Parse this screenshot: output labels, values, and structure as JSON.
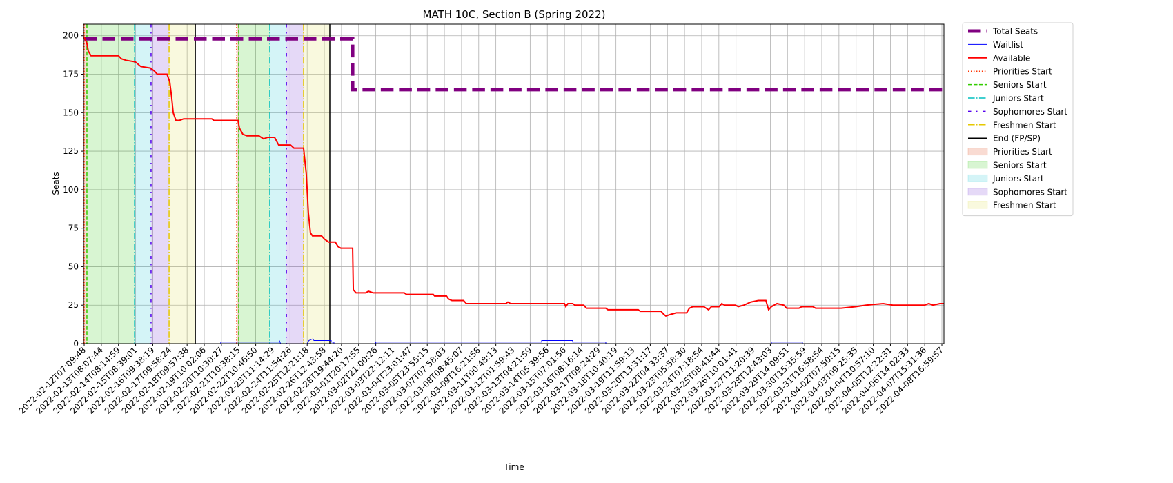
{
  "chart_data": {
    "type": "line",
    "title": "MATH 10C, Section B (Spring 2022)",
    "xlabel": "Time",
    "ylabel": "Seats",
    "grid": true,
    "legend": "outside upper right",
    "xlim": [
      -0.04,
      50.12
    ],
    "ylim": [
      0,
      207.5
    ],
    "yticks": [
      0,
      25,
      50,
      75,
      100,
      125,
      150,
      175,
      200
    ],
    "xticks": [
      {
        "value": 0,
        "label": "2022-02-12T07:09:48"
      },
      {
        "value": 1,
        "label": "2022-02-13T08:07:44"
      },
      {
        "value": 2,
        "label": "2022-02-14T08:14:59"
      },
      {
        "value": 3,
        "label": "2022-02-15T08:39:01"
      },
      {
        "value": 4,
        "label": "2022-02-16T09:38:19"
      },
      {
        "value": 5,
        "label": "2022-02-17T09:58:24"
      },
      {
        "value": 6,
        "label": "2022-02-18T09:57:38"
      },
      {
        "value": 7,
        "label": "2022-02-19T10:02:06"
      },
      {
        "value": 8,
        "label": "2022-02-20T10:30:27"
      },
      {
        "value": 9,
        "label": "2022-02-21T10:38:15"
      },
      {
        "value": 10,
        "label": "2022-02-22T10:46:50"
      },
      {
        "value": 11,
        "label": "2022-02-23T11:14:29"
      },
      {
        "value": 12,
        "label": "2022-02-24T11:54:26"
      },
      {
        "value": 13,
        "label": "2022-02-25T12:21:18"
      },
      {
        "value": 14,
        "label": "2022-02-26T12:43:58"
      },
      {
        "value": 15,
        "label": "2022-02-28T19:44:20"
      },
      {
        "value": 16,
        "label": "2022-03-01T20:17:55"
      },
      {
        "value": 17,
        "label": "2022-03-02T21:00:26"
      },
      {
        "value": 18,
        "label": "2022-03-03T22:12:11"
      },
      {
        "value": 19,
        "label": "2022-03-04T23:01:47"
      },
      {
        "value": 20,
        "label": "2022-03-05T23:55:15"
      },
      {
        "value": 21,
        "label": "2022-03-07T07:58:03"
      },
      {
        "value": 22,
        "label": "2022-03-08T08:45:07"
      },
      {
        "value": 23,
        "label": "2022-03-09T16:21:58"
      },
      {
        "value": 24,
        "label": "2022-03-11T00:48:13"
      },
      {
        "value": 25,
        "label": "2022-03-12T01:59:43"
      },
      {
        "value": 26,
        "label": "2022-03-13T04:21:59"
      },
      {
        "value": 27,
        "label": "2022-03-14T05:39:56"
      },
      {
        "value": 28,
        "label": "2022-03-15T07:01:56"
      },
      {
        "value": 29,
        "label": "2022-03-16T08:16:14"
      },
      {
        "value": 30,
        "label": "2022-03-17T09:24:29"
      },
      {
        "value": 31,
        "label": "2022-03-18T10:40:19"
      },
      {
        "value": 32,
        "label": "2022-03-19T11:59:13"
      },
      {
        "value": 33,
        "label": "2022-03-20T13:31:17"
      },
      {
        "value": 34,
        "label": "2022-03-22T04:33:37"
      },
      {
        "value": 35,
        "label": "2022-03-23T05:58:30"
      },
      {
        "value": 36,
        "label": "2022-03-24T07:18:54"
      },
      {
        "value": 37,
        "label": "2022-03-25T08:41:44"
      },
      {
        "value": 38,
        "label": "2022-03-26T10:01:41"
      },
      {
        "value": 39,
        "label": "2022-03-27T11:20:39"
      },
      {
        "value": 40,
        "label": "2022-03-28T12:43:03"
      },
      {
        "value": 41,
        "label": "2022-03-29T14:09:51"
      },
      {
        "value": 42,
        "label": "2022-03-30T15:35:59"
      },
      {
        "value": 43,
        "label": "2022-03-31T16:58:54"
      },
      {
        "value": 44,
        "label": "2022-04-02T07:50:15"
      },
      {
        "value": 45,
        "label": "2022-04-03T09:25:35"
      },
      {
        "value": 46,
        "label": "2022-04-04T10:57:10"
      },
      {
        "value": 47,
        "label": "2022-04-05T12:22:31"
      },
      {
        "value": 48,
        "label": "2022-04-06T14:02:33"
      },
      {
        "value": 49,
        "label": "2022-04-07T15:31:36"
      },
      {
        "value": 50,
        "label": "2022-04-08T16:59:57"
      }
    ],
    "series": [
      {
        "name": "Total Seats",
        "color": "#800080",
        "style": "dashed",
        "width": 5,
        "x": [
          0,
          15.65,
          15.65,
          50.12
        ],
        "values": [
          198,
          198,
          165,
          165
        ]
      },
      {
        "name": "Waitlist",
        "color": "#0000ff",
        "style": "solid",
        "width": 1,
        "x": [
          0,
          7.96,
          7.96,
          11.38,
          11.38,
          11.45,
          13.0,
          13.1,
          13.3,
          13.4,
          14.4,
          14.4,
          14.56,
          14.56,
          17.0,
          17.0,
          26.67,
          26.67,
          28.48,
          28.48,
          30.41,
          30.41,
          40.06,
          40.06,
          41.87,
          41.87,
          50.12
        ],
        "values": [
          0,
          0,
          1,
          1,
          2,
          0,
          0,
          2,
          3,
          2,
          2,
          1,
          1,
          0,
          0,
          1,
          1,
          2,
          2,
          1,
          1,
          0,
          0,
          1,
          1,
          0,
          0
        ]
      },
      {
        "name": "Available",
        "color": "#ff0000",
        "style": "solid",
        "width": 2,
        "x": [
          0,
          0.16,
          0.24,
          0.4,
          2.0,
          2.17,
          2.45,
          2.98,
          3.3,
          3.86,
          4.1,
          4.26,
          4.83,
          4.99,
          5.1,
          5.19,
          5.35,
          5.55,
          5.8,
          7.44,
          7.56,
          8.97,
          9.05,
          9.25,
          9.49,
          10.18,
          10.46,
          10.7,
          11.1,
          11.34,
          12.03,
          12.23,
          12.79,
          12.95,
          13.07,
          13.19,
          13.31,
          13.84,
          14.0,
          14.24,
          14.64,
          14.8,
          14.96,
          15.65,
          15.69,
          15.85,
          16.41,
          16.57,
          16.85,
          18.66,
          18.79,
          20.35,
          20.43,
          21.12,
          21.24,
          21.44,
          22.12,
          22.28,
          24.58,
          24.7,
          24.86,
          28.0,
          28.08,
          28.2,
          28.48,
          28.6,
          29.12,
          29.28,
          30.41,
          30.53,
          32.3,
          32.42,
          33.63,
          33.79,
          33.91,
          34.19,
          34.51,
          35.12,
          35.28,
          35.48,
          36.12,
          36.4,
          36.56,
          37.01,
          37.17,
          37.33,
          37.97,
          38.13,
          38.46,
          38.86,
          39.3,
          39.74,
          39.9,
          40.06,
          40.39,
          40.79,
          40.95,
          41.67,
          41.83,
          42.48,
          42.64,
          43.24,
          44.13,
          44.97,
          45.58,
          46.58,
          47.14,
          48.99,
          49.24,
          49.48,
          49.88,
          50.12
        ],
        "values": [
          199,
          195,
          190,
          187,
          187,
          185,
          184,
          183,
          180,
          179,
          177,
          175,
          175,
          170,
          160,
          150,
          145,
          145,
          146,
          146,
          145,
          145,
          140,
          136,
          135,
          135,
          133,
          134,
          134,
          129,
          129,
          127,
          127,
          110,
          85,
          72,
          70,
          70,
          68,
          66,
          66,
          63,
          62,
          62,
          35,
          33,
          33,
          34,
          33,
          33,
          32,
          32,
          31,
          31,
          29,
          28,
          28,
          26,
          26,
          27,
          26,
          26,
          24,
          26,
          26,
          25,
          25,
          23,
          23,
          22,
          22,
          21,
          21,
          19,
          18,
          19,
          20,
          20,
          23,
          24,
          24,
          22,
          24,
          24,
          26,
          25,
          25,
          24,
          25,
          27,
          28,
          28,
          22,
          24,
          26,
          25,
          23,
          23,
          24,
          24,
          23,
          23,
          23,
          24,
          25,
          26,
          25,
          25,
          26,
          25,
          26,
          26
        ]
      }
    ],
    "vlines": [
      {
        "name": "Priorities Start",
        "color": "#ff3300",
        "style": "dotted",
        "x": [
          0,
          8.89
        ]
      },
      {
        "name": "Seniors Start",
        "color": "#33cc00",
        "style": "dashed",
        "x": [
          0.16,
          9.01
        ]
      },
      {
        "name": "Juniors Start",
        "color": "#00bfbf",
        "style": "dashdot",
        "x": [
          2.94,
          10.82
        ]
      },
      {
        "name": "Sophomores Start",
        "color": "#5500ee",
        "style": "loosedashdot",
        "x": [
          3.9,
          11.79
        ]
      },
      {
        "name": "Freshmen Start",
        "color": "#e6c800",
        "style": "dashdot",
        "x": [
          4.95,
          12.79
        ]
      },
      {
        "name": "End (FP/SP)",
        "color": "#000000",
        "style": "solid",
        "x": [
          6.48,
          14.32
        ]
      }
    ],
    "spans": [
      {
        "name": "Priorities Start",
        "color": "#e8704a",
        "alpha": 0.25,
        "x": [
          [
            0,
            0.16
          ],
          [
            8.89,
            9.01
          ]
        ]
      },
      {
        "name": "Seniors Start",
        "color": "#3ccc1e",
        "alpha": 0.2,
        "x": [
          [
            0.16,
            2.94
          ],
          [
            9.01,
            10.82
          ]
        ]
      },
      {
        "name": "Juniors Start",
        "color": "#27c7d9",
        "alpha": 0.2,
        "x": [
          [
            2.94,
            3.9
          ],
          [
            10.82,
            11.79
          ]
        ]
      },
      {
        "name": "Sophomores Start",
        "color": "#7b3fd6",
        "alpha": 0.2,
        "x": [
          [
            3.9,
            4.95
          ],
          [
            11.79,
            12.79
          ]
        ]
      },
      {
        "name": "Freshmen Start",
        "color": "#e3e35a",
        "alpha": 0.2,
        "x": [
          [
            4.95,
            6.48
          ],
          [
            12.79,
            14.32
          ]
        ]
      }
    ]
  }
}
